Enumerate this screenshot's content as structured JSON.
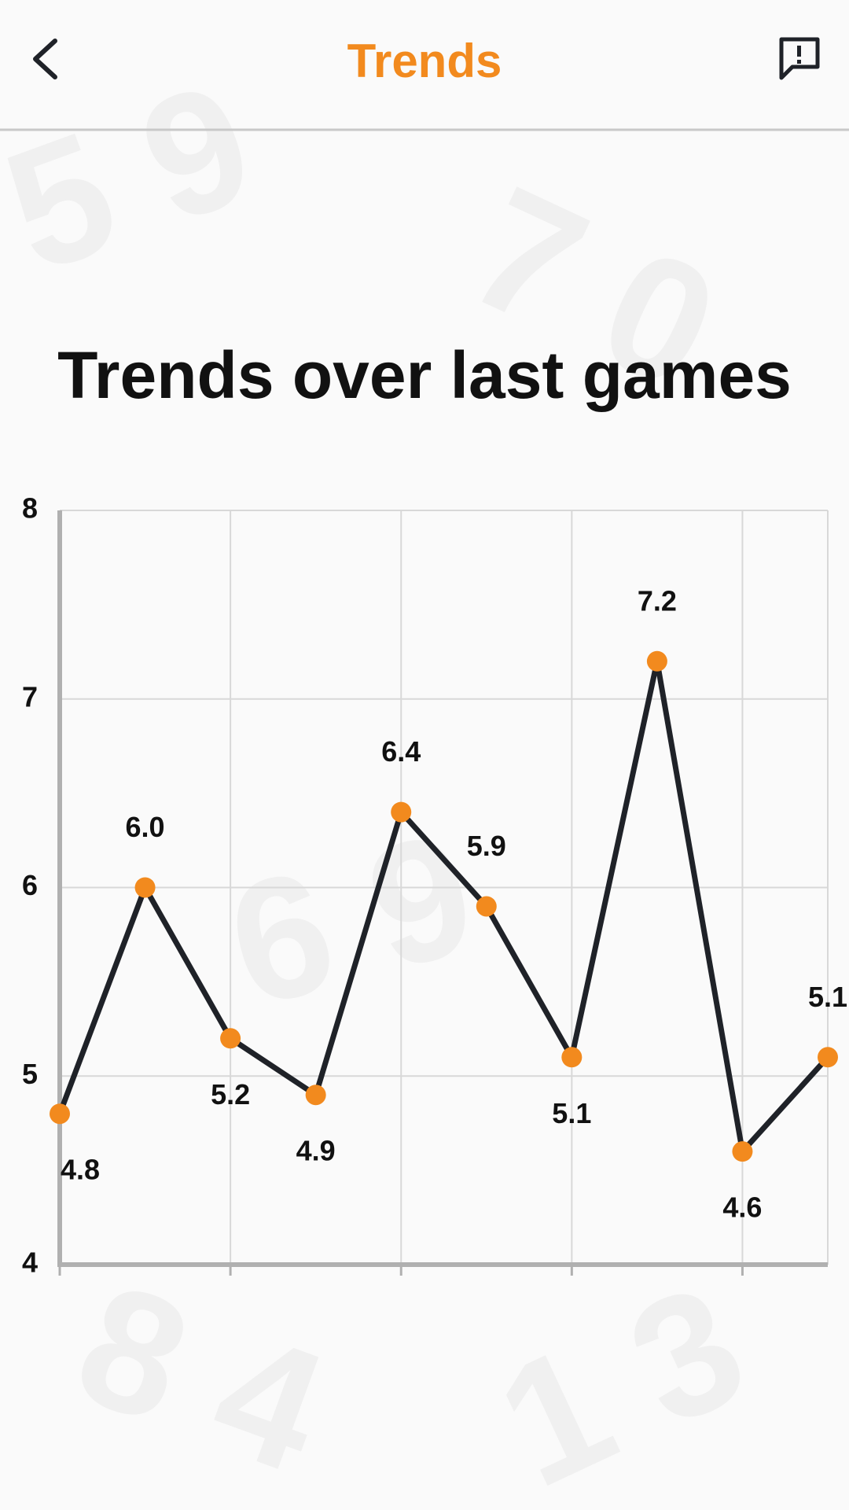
{
  "header": {
    "title": "Trends"
  },
  "chart_data": {
    "type": "line",
    "title": "Trends over last games",
    "categories": [
      null,
      null,
      null,
      null,
      null,
      null,
      null,
      null,
      null,
      null
    ],
    "values": [
      4.8,
      6.0,
      5.2,
      4.9,
      6.4,
      5.9,
      5.1,
      7.2,
      4.6,
      5.1
    ],
    "value_labels": [
      "4.8",
      "6.0",
      "5.2",
      "4.9",
      "6.4",
      "5.9",
      "5.1",
      "7.2",
      "4.6",
      "5.1"
    ],
    "color": "#1f2228",
    "marker_color": "#f28a1e",
    "ylim": [
      4,
      8
    ],
    "yticks": [
      4,
      5,
      6,
      7,
      8
    ],
    "grid": true
  }
}
